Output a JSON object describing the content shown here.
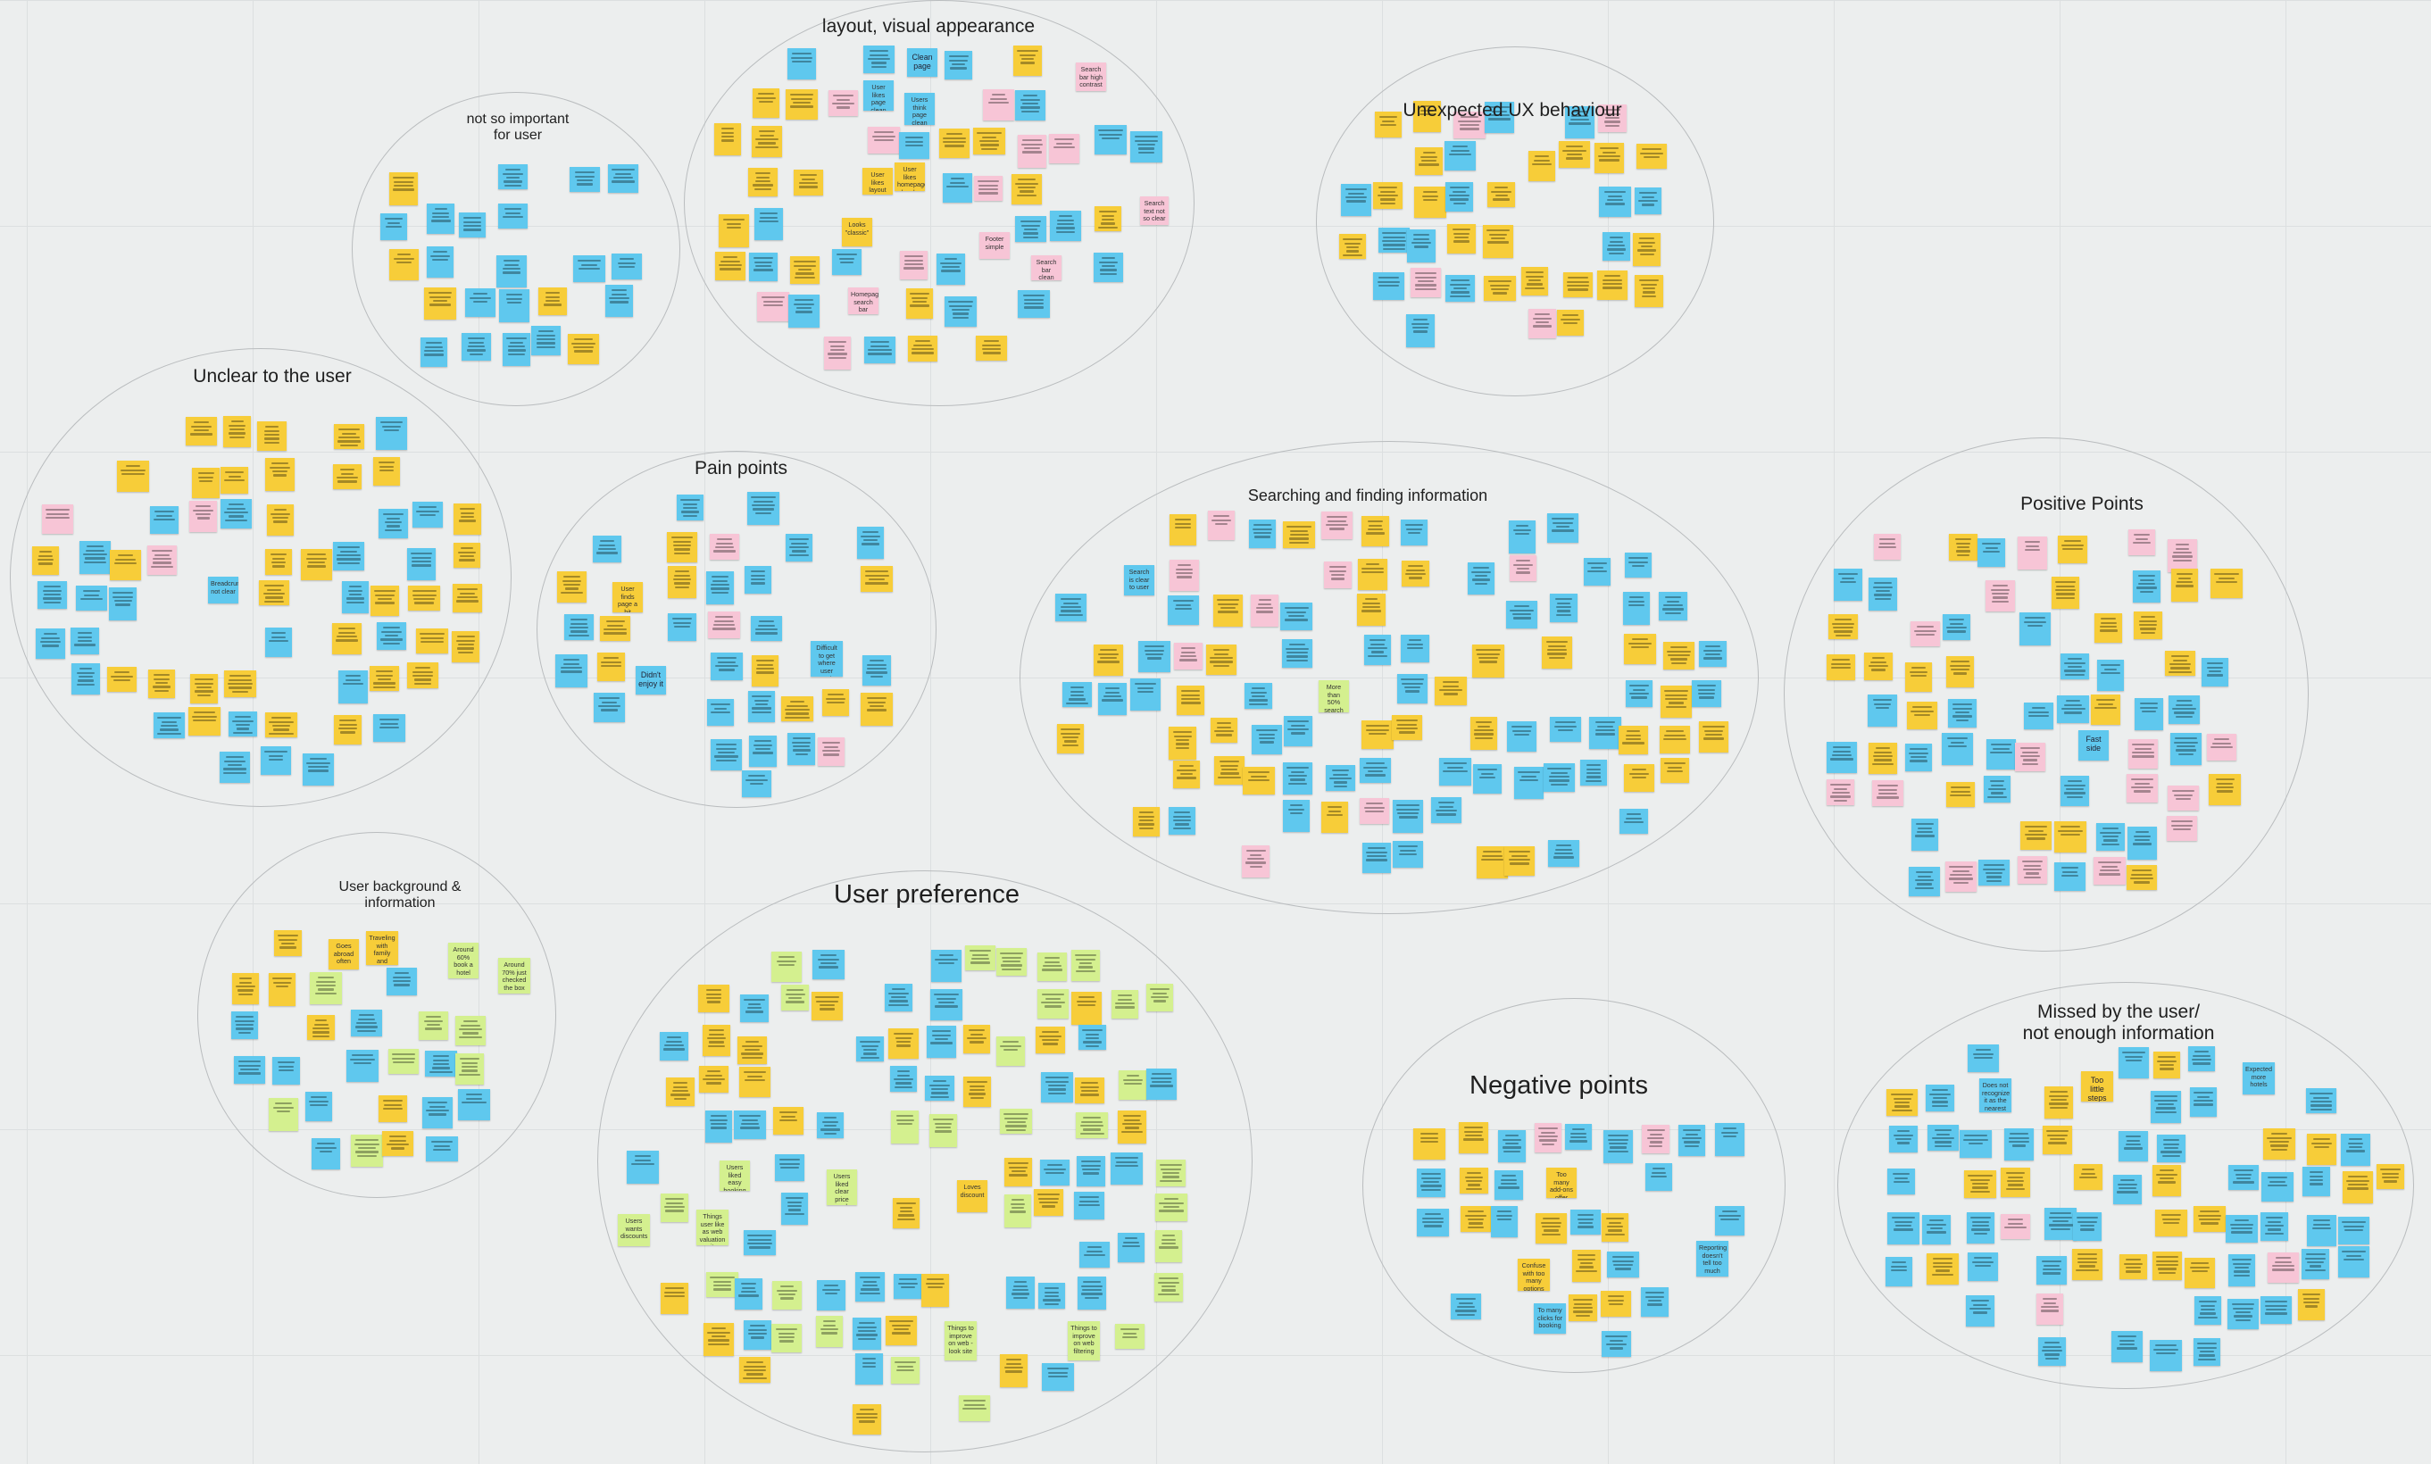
{
  "board": {
    "colors": {
      "background": "#eceeee",
      "cluster_border": "#b9bcbe",
      "note_blue": "#5fc8ee",
      "note_yellow": "#f7cd39",
      "note_pink": "#f7c5d6",
      "note_green": "#d4f08f"
    },
    "clusters": [
      {
        "id": "layout",
        "title": "layout, visual appearance"
      },
      {
        "id": "not-important",
        "title": "not so important\nfor user"
      },
      {
        "id": "unexpected",
        "title": "Unexpected UX behaviour"
      },
      {
        "id": "unclear",
        "title": "Unclear to the user"
      },
      {
        "id": "pain",
        "title": "Pain points"
      },
      {
        "id": "searching",
        "title": "Searching and finding information"
      },
      {
        "id": "positive",
        "title": "Positive Points"
      },
      {
        "id": "background",
        "title": "User background &\ninformation"
      },
      {
        "id": "preference",
        "title": "User preference"
      },
      {
        "id": "negative",
        "title": "Negative points"
      },
      {
        "id": "missed",
        "title": "Missed by the user/\nnot enough information"
      }
    ],
    "labeled_notes": [
      {
        "cluster": "layout",
        "color": "blue",
        "text": "Clean page"
      },
      {
        "cluster": "layout",
        "color": "blue",
        "text": "User likes page clean and tidy"
      },
      {
        "cluster": "layout",
        "color": "blue",
        "text": "Users think page clean \"tidy\""
      },
      {
        "cluster": "layout",
        "color": "yellow",
        "text": "User likes layout"
      },
      {
        "cluster": "layout",
        "color": "yellow",
        "text": "User likes homepage lovely"
      },
      {
        "cluster": "layout",
        "color": "yellow",
        "text": "Looks \"classic\""
      },
      {
        "cluster": "layout",
        "color": "pink",
        "text": "Footer simple"
      },
      {
        "cluster": "layout",
        "color": "pink",
        "text": "Search bar clean"
      },
      {
        "cluster": "layout",
        "color": "pink",
        "text": "Search bar high contrast"
      },
      {
        "cluster": "layout",
        "color": "pink",
        "text": "Search text not so clear"
      },
      {
        "cluster": "layout",
        "color": "pink",
        "text": "Homepage search bar stands out"
      },
      {
        "cluster": "unclear",
        "color": "blue",
        "text": "Breadcrumb not clear"
      },
      {
        "cluster": "pain",
        "color": "blue",
        "text": "Didn't enjoy it"
      },
      {
        "cluster": "pain",
        "color": "yellow",
        "text": "User finds page a bit clunky"
      },
      {
        "cluster": "pain",
        "color": "blue",
        "text": "Difficult to get where user wants"
      },
      {
        "cluster": "searching",
        "color": "blue",
        "text": "Search is clear to user"
      },
      {
        "cluster": "searching",
        "color": "green",
        "text": "More than 50% search for Guatemala"
      },
      {
        "cluster": "positive",
        "color": "blue",
        "text": "Fast side"
      },
      {
        "cluster": "background",
        "color": "yellow",
        "text": "Goes abroad often"
      },
      {
        "cluster": "background",
        "color": "yellow",
        "text": "Traveling with family and friends"
      },
      {
        "cluster": "background",
        "color": "green",
        "text": "Around 60% book a hotel"
      },
      {
        "cluster": "background",
        "color": "green",
        "text": "Around 70% just checked the box"
      },
      {
        "cluster": "preference",
        "color": "green",
        "text": "Users liked easy booking"
      },
      {
        "cluster": "preference",
        "color": "green",
        "text": "Users wants discounts"
      },
      {
        "cluster": "preference",
        "color": "green",
        "text": "Users liked clear price and conditions"
      },
      {
        "cluster": "preference",
        "color": "green",
        "text": "Things user like as web valuation site"
      },
      {
        "cluster": "preference",
        "color": "green",
        "text": "Things to improve on web - look site"
      },
      {
        "cluster": "preference",
        "color": "green",
        "text": "Things to improve on web filtering"
      },
      {
        "cluster": "preference",
        "color": "yellow",
        "text": "Loves discount"
      },
      {
        "cluster": "negative",
        "color": "yellow",
        "text": "Too many add-ons offer"
      },
      {
        "cluster": "negative",
        "color": "blue",
        "text": "To many clicks for booking"
      },
      {
        "cluster": "negative",
        "color": "yellow",
        "text": "Confuse with too many options"
      },
      {
        "cluster": "negative",
        "color": "blue",
        "text": "Reporting doesn't tell too much"
      },
      {
        "cluster": "missed",
        "color": "yellow",
        "text": "Too little steps"
      },
      {
        "cluster": "missed",
        "color": "blue",
        "text": "Expected more hotels"
      },
      {
        "cluster": "missed",
        "color": "blue",
        "text": "Does not recognize it as the nearest"
      }
    ]
  }
}
